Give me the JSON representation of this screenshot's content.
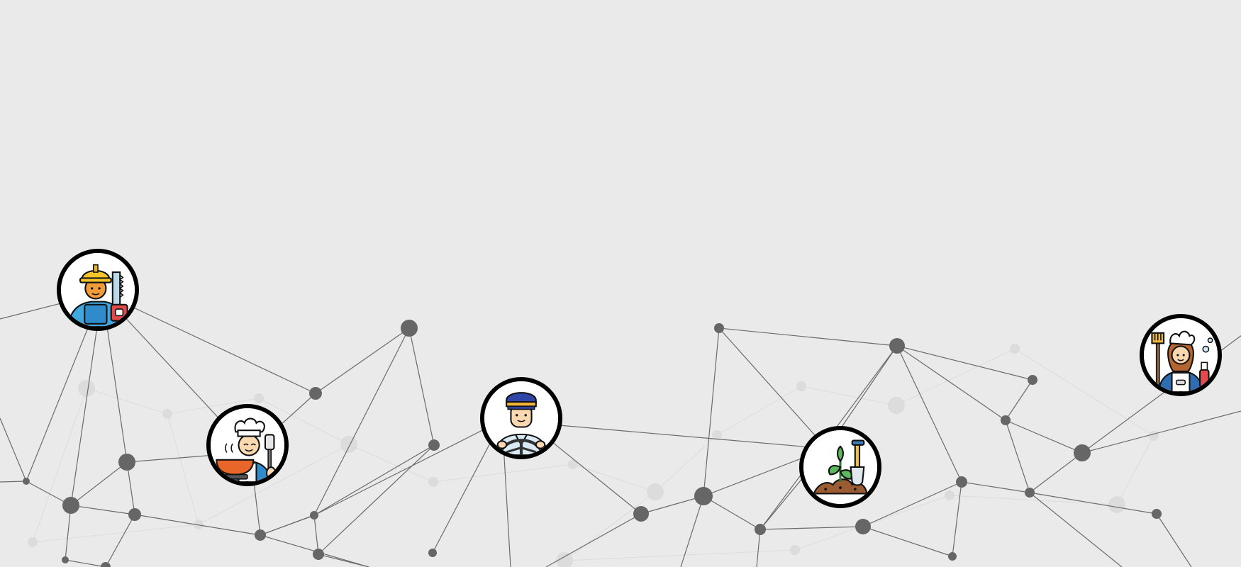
{
  "scene": {
    "background_color": "#ebeaea",
    "network_line_color": "#6b6b6b",
    "network_node_color": "#666666",
    "faint_node_color": "#dcdcdc"
  },
  "avatars": [
    {
      "name": "construction-worker",
      "icon": "construction-worker-icon"
    },
    {
      "name": "chef",
      "icon": "chef-icon"
    },
    {
      "name": "driver",
      "icon": "driver-icon"
    },
    {
      "name": "gardener",
      "icon": "gardener-icon"
    },
    {
      "name": "cleaner",
      "icon": "cleaner-icon"
    }
  ]
}
